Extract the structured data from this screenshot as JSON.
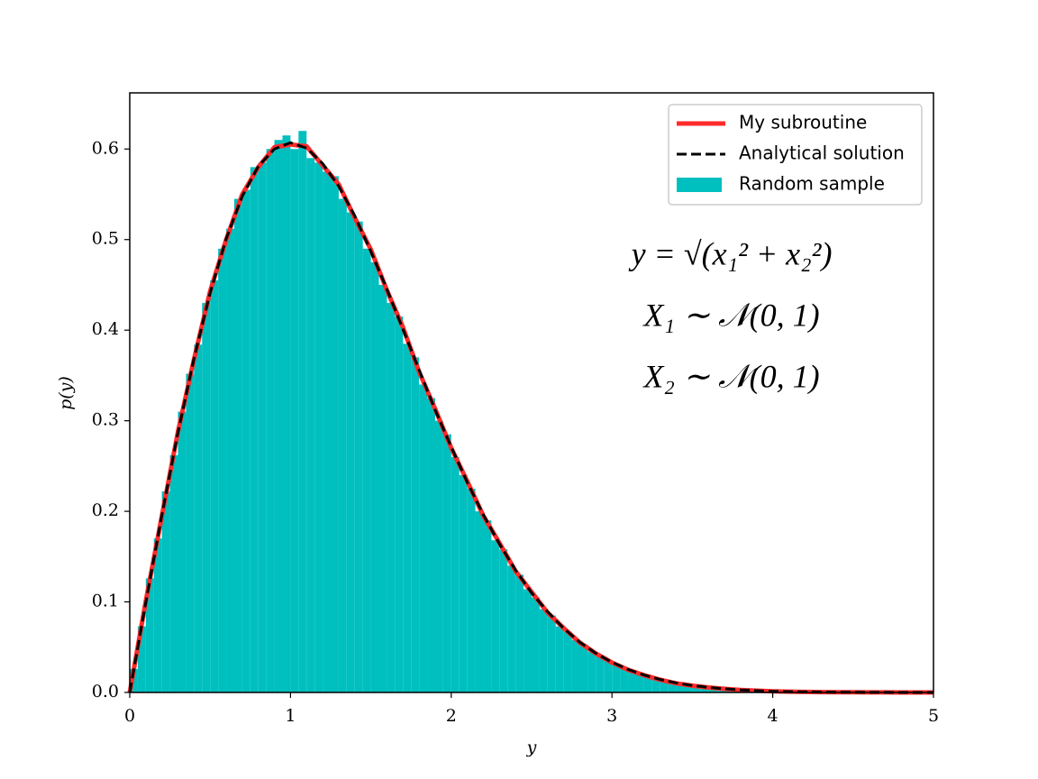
{
  "chart_data": {
    "type": "histogram",
    "xlabel": "y",
    "ylabel": "p(y)",
    "xlim": [
      0,
      5
    ],
    "ylim": [
      0,
      0.662
    ],
    "xticks": [
      0,
      1,
      2,
      3,
      4,
      5
    ],
    "yticks": [
      {
        "value": 0,
        "label": "0.0"
      },
      0.1,
      0.2,
      0.3,
      0.4,
      0.5,
      0.6
    ],
    "legend": "upper right",
    "histogram_name": "Random sample",
    "color": "#00bfbf",
    "bins": [
      0,
      0.05,
      0.1,
      0.15,
      0.2,
      0.25,
      0.3,
      0.35,
      0.4,
      0.45,
      0.5,
      0.55,
      0.6,
      0.65,
      0.7,
      0.75,
      0.8,
      0.85,
      0.9,
      0.95,
      1,
      1.05,
      1.1,
      1.15,
      1.2,
      1.25,
      1.3,
      1.35,
      1.4,
      1.45,
      1.5,
      1.55,
      1.6,
      1.65,
      1.7,
      1.75,
      1.8,
      1.85,
      1.9,
      1.95,
      2,
      2.05,
      2.1,
      2.15,
      2.2,
      2.25,
      2.3,
      2.35,
      2.4,
      2.45,
      2.5,
      2.55,
      2.6,
      2.65,
      2.7,
      2.75,
      2.8,
      2.85,
      2.9,
      2.95,
      3,
      3.05,
      3.1,
      3.15,
      3.2,
      3.25,
      3.3,
      3.35,
      3.4,
      3.45,
      3.5,
      3.55,
      3.6,
      3.65,
      3.7,
      3.75,
      3.8,
      3.85,
      3.9,
      3.95,
      4,
      4.05,
      4.1,
      4.15,
      4.2,
      4.25,
      4.3,
      4.35,
      4.4,
      4.45,
      4.5,
      4.55,
      4.6,
      4.65,
      4.7,
      4.75,
      4.8,
      4.85,
      4.9,
      4.95,
      5
    ],
    "values": [
      0.026,
      0.073,
      0.126,
      0.17,
      0.222,
      0.262,
      0.31,
      0.352,
      0.384,
      0.43,
      0.455,
      0.49,
      0.512,
      0.545,
      0.555,
      0.58,
      0.585,
      0.6,
      0.61,
      0.615,
      0.6,
      0.62,
      0.59,
      0.585,
      0.575,
      0.57,
      0.545,
      0.53,
      0.52,
      0.49,
      0.475,
      0.45,
      0.43,
      0.415,
      0.385,
      0.37,
      0.34,
      0.325,
      0.3,
      0.285,
      0.26,
      0.24,
      0.225,
      0.2,
      0.19,
      0.168,
      0.158,
      0.14,
      0.13,
      0.114,
      0.105,
      0.092,
      0.085,
      0.073,
      0.067,
      0.058,
      0.053,
      0.045,
      0.041,
      0.035,
      0.032,
      0.027,
      0.024,
      0.02,
      0.018,
      0.015,
      0.013,
      0.011,
      0.01,
      0.008,
      0.007,
      0.006,
      0.005,
      0.004,
      0.004,
      0.003,
      0.003,
      0.002,
      0.002,
      0.0015,
      0.0012,
      0.001,
      0.0008,
      0.0006,
      0.0005,
      0.0004,
      0.0003,
      0.0003,
      0.0002,
      0.0002,
      0.0001,
      0.0001,
      0.0001,
      0.0001,
      0,
      0,
      0,
      0,
      0,
      0
    ],
    "series": [
      {
        "name": "My subroutine",
        "color": "#ff2a2a",
        "style": "solid",
        "x": [
          0,
          0.1,
          0.2,
          0.3,
          0.4,
          0.5,
          0.6,
          0.7,
          0.8,
          0.9,
          1,
          1.1,
          1.2,
          1.3,
          1.4,
          1.5,
          1.6,
          1.7,
          1.8,
          1.9,
          2,
          2.1,
          2.2,
          2.3,
          2.4,
          2.5,
          2.6,
          2.7,
          2.8,
          2.9,
          3,
          3.1,
          3.2,
          3.3,
          3.4,
          3.5,
          3.6,
          3.7,
          3.8,
          3.9,
          4,
          4.1,
          4.2,
          4.3,
          4.4,
          4.5,
          4.6,
          4.7,
          4.8,
          4.9,
          5
        ],
        "values": [
          0,
          0.101,
          0.195,
          0.288,
          0.368,
          0.443,
          0.5,
          0.55,
          0.58,
          0.602,
          0.605,
          0.603,
          0.582,
          0.561,
          0.524,
          0.489,
          0.444,
          0.403,
          0.354,
          0.313,
          0.27,
          0.233,
          0.195,
          0.165,
          0.134,
          0.111,
          0.088,
          0.071,
          0.055,
          0.043,
          0.033,
          0.025,
          0.019,
          0.014,
          0.01,
          0.0075,
          0.0055,
          0.004,
          0.0028,
          0.002,
          0.0013,
          0.0009,
          0.0006,
          0.0004,
          0.0003,
          0.0002,
          0.0001,
          0.0001,
          0,
          0,
          0
        ]
      },
      {
        "name": "Analytical solution",
        "color": "#000000",
        "style": "dashed",
        "x": [
          0,
          0.1,
          0.2,
          0.3,
          0.4,
          0.5,
          0.6,
          0.7,
          0.8,
          0.9,
          1,
          1.1,
          1.2,
          1.3,
          1.4,
          1.5,
          1.6,
          1.7,
          1.8,
          1.9,
          2,
          2.1,
          2.2,
          2.3,
          2.4,
          2.5,
          2.6,
          2.7,
          2.8,
          2.9,
          3,
          3.1,
          3.2,
          3.3,
          3.4,
          3.5,
          3.6,
          3.7,
          3.8,
          3.9,
          4,
          4.1,
          4.2,
          4.3,
          4.4,
          4.5,
          4.6,
          4.7,
          4.8,
          4.9,
          5
        ],
        "values": [
          0,
          0.0995,
          0.196,
          0.287,
          0.369,
          0.441,
          0.501,
          0.548,
          0.581,
          0.6,
          0.607,
          0.601,
          0.584,
          0.559,
          0.526,
          0.487,
          0.445,
          0.401,
          0.356,
          0.312,
          0.271,
          0.232,
          0.196,
          0.164,
          0.135,
          0.11,
          0.089,
          0.0707,
          0.0554,
          0.0432,
          0.0333,
          0.0254,
          0.0192,
          0.0143,
          0.0105,
          0.0076,
          0.0056,
          0.004,
          0.0028,
          0.002,
          0.0013,
          0.0009,
          0.0006,
          0.0004,
          0.0003,
          0.0002,
          0.0001,
          0.0001,
          0,
          0,
          0
        ]
      }
    ],
    "annotations": [
      "y = √(x₁² + x₂²)",
      "X₁ ∼ 𝒩(0, 1)",
      "X₂ ∼ 𝒩(0, 1)"
    ]
  }
}
